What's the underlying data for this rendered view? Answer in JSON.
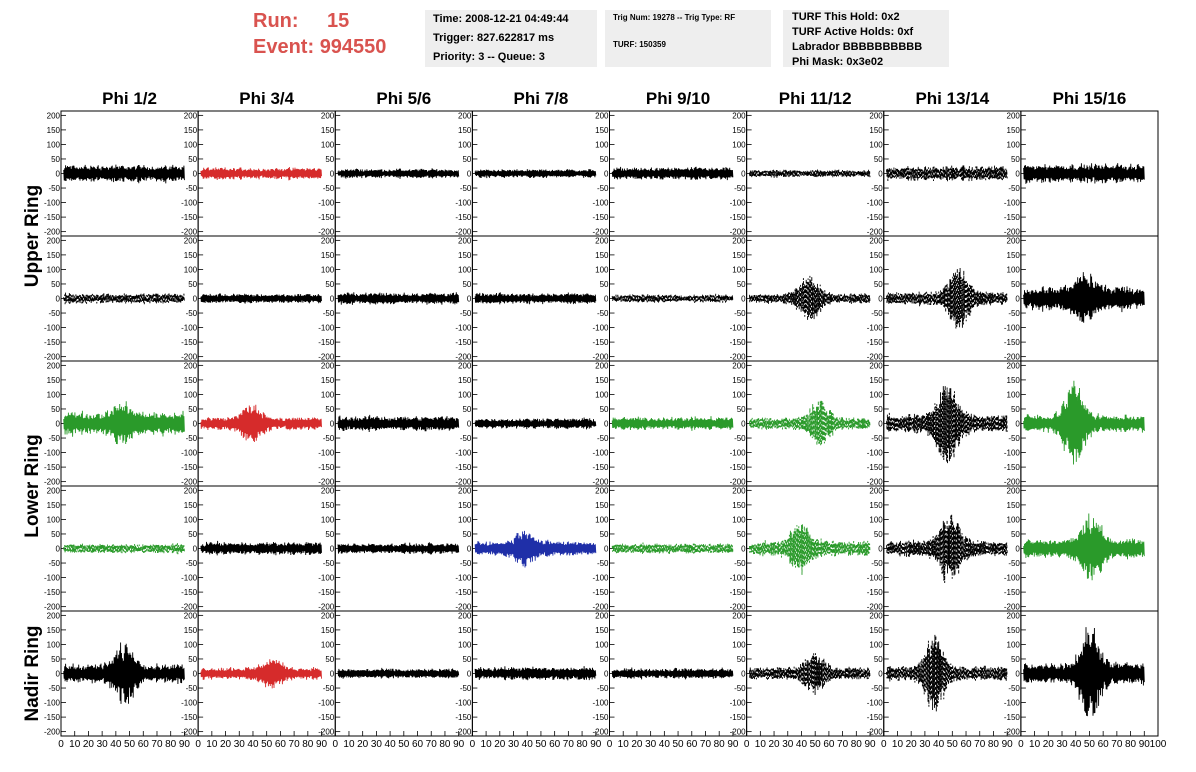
{
  "header": {
    "run_label": "Run:",
    "run_value": "15",
    "event_label": "Event:",
    "event_value": "994550",
    "time_line": "Time: 2008-12-21 04:49:44",
    "trigger_line": "Trigger: 827.622817 ms",
    "priority_line": "Priority: 3 -- Queue: 3",
    "trig_line": "Trig Num: 19278 -- Trig Type: RF",
    "turf_line": "TURF: 150359",
    "turf_hold_line": "TURF This Hold: 0x2",
    "turf_active_line": "TURF Active Holds: 0xf",
    "labrador_line": "Labrador BBBBBBBBBB",
    "phi_mask_line": "Phi Mask: 0x3e02"
  },
  "chart_data": {
    "type": "line",
    "columns": [
      "Phi 1/2",
      "Phi 3/4",
      "Phi 5/6",
      "Phi 7/8",
      "Phi 9/10",
      "Phi 11/12",
      "Phi 13/14",
      "Phi 15/16"
    ],
    "ring_labels": [
      {
        "name": "Upper Ring",
        "rows": [
          0,
          1
        ]
      },
      {
        "name": "Lower Ring",
        "rows": [
          2,
          3
        ]
      },
      {
        "name": "Nadir Ring",
        "rows": [
          4
        ]
      }
    ],
    "xlim": [
      0,
      100
    ],
    "x_ticks": [
      0,
      10,
      20,
      30,
      40,
      50,
      60,
      70,
      80,
      90,
      100
    ],
    "ylim": [
      -215,
      215
    ],
    "y_ticks": [
      -200,
      -150,
      -100,
      -50,
      0,
      50,
      100,
      150,
      200
    ],
    "colors": {
      "black": "#000000",
      "red": "#d62b2b",
      "green": "#2a9a2a",
      "blue": "#1f2fa8"
    },
    "panels": [
      [
        {
          "color": "black",
          "style": "solid",
          "amp": 40,
          "spike": 0
        },
        {
          "color": "red",
          "style": "solid",
          "amp": 28,
          "spike": 0
        },
        {
          "color": "black",
          "style": "solid",
          "amp": 22,
          "spike": 0
        },
        {
          "color": "black",
          "style": "solid",
          "amp": 20,
          "spike": 0
        },
        {
          "color": "black",
          "style": "solid",
          "amp": 28,
          "spike": 0
        },
        {
          "color": "black",
          "style": "dashed",
          "amp": 18,
          "spike": 0
        },
        {
          "color": "black",
          "style": "dashed",
          "amp": 35,
          "spike": 0
        },
        {
          "color": "black",
          "style": "solid",
          "amp": 45,
          "spike": 0
        }
      ],
      [
        {
          "color": "black",
          "style": "dashed",
          "amp": 25,
          "spike": 0
        },
        {
          "color": "black",
          "style": "solid",
          "amp": 22,
          "spike": 0
        },
        {
          "color": "black",
          "style": "solid",
          "amp": 28,
          "spike": 0
        },
        {
          "color": "black",
          "style": "solid",
          "amp": 25,
          "spike": 0
        },
        {
          "color": "black",
          "style": "dashed",
          "amp": 20,
          "spike": 0
        },
        {
          "color": "black",
          "style": "dashed",
          "amp": 25,
          "spike": 80
        },
        {
          "color": "black",
          "style": "dashed",
          "amp": 30,
          "spike": 110
        },
        {
          "color": "black",
          "style": "solid",
          "amp": 55,
          "spike": 60
        }
      ],
      [
        {
          "color": "green",
          "style": "solid",
          "amp": 55,
          "spike": 40
        },
        {
          "color": "red",
          "style": "solid",
          "amp": 30,
          "spike": 55
        },
        {
          "color": "black",
          "style": "solid",
          "amp": 35,
          "spike": 0
        },
        {
          "color": "black",
          "style": "solid",
          "amp": 25,
          "spike": 0
        },
        {
          "color": "green",
          "style": "solid",
          "amp": 30,
          "spike": 0
        },
        {
          "color": "green",
          "style": "dashed",
          "amp": 30,
          "spike": 70
        },
        {
          "color": "black",
          "style": "dashed",
          "amp": 45,
          "spike": 140
        },
        {
          "color": "green",
          "style": "solid",
          "amp": 40,
          "spike": 130
        }
      ],
      [
        {
          "color": "green",
          "style": "dashed",
          "amp": 22,
          "spike": 0
        },
        {
          "color": "black",
          "style": "solid",
          "amp": 30,
          "spike": 0
        },
        {
          "color": "black",
          "style": "solid",
          "amp": 25,
          "spike": 0
        },
        {
          "color": "blue",
          "style": "solid",
          "amp": 35,
          "spike": 50
        },
        {
          "color": "green",
          "style": "dashed",
          "amp": 25,
          "spike": 0
        },
        {
          "color": "green",
          "style": "dashed",
          "amp": 35,
          "spike": 80
        },
        {
          "color": "black",
          "style": "dashed",
          "amp": 40,
          "spike": 120
        },
        {
          "color": "green",
          "style": "solid",
          "amp": 45,
          "spike": 100
        }
      ],
      [
        {
          "color": "black",
          "style": "solid",
          "amp": 45,
          "spike": 90
        },
        {
          "color": "red",
          "style": "solid",
          "amp": 30,
          "spike": 40
        },
        {
          "color": "black",
          "style": "solid",
          "amp": 22,
          "spike": 0
        },
        {
          "color": "black",
          "style": "solid",
          "amp": 30,
          "spike": 0
        },
        {
          "color": "black",
          "style": "solid",
          "amp": 25,
          "spike": 0
        },
        {
          "color": "black",
          "style": "dashed",
          "amp": 30,
          "spike": 60
        },
        {
          "color": "black",
          "style": "dashed",
          "amp": 35,
          "spike": 120
        },
        {
          "color": "black",
          "style": "solid",
          "amp": 50,
          "spike": 150
        }
      ]
    ]
  }
}
